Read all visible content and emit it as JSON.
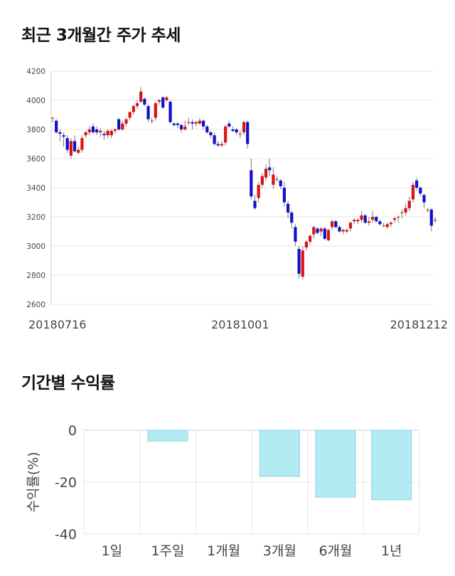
{
  "sections": {
    "price_title": "최근 3개월간 주가 추세",
    "returns_title": "기간별 수익률"
  },
  "colors": {
    "up": "#dd1111",
    "down": "#1111cc",
    "bar_fill": "#b2ebf2",
    "bar_stroke": "#8fd6e2",
    "grid": "#e6e6e6"
  },
  "chart_data": [
    {
      "type": "candlestick",
      "title": "최근 3개월간 주가 추세",
      "ylim": [
        2600,
        4200
      ],
      "yticks": [
        2600,
        2800,
        3000,
        3200,
        3400,
        3600,
        3800,
        4000,
        4200
      ],
      "xtick_labels": [
        {
          "label": "20180716",
          "index": 0
        },
        {
          "label": "20181001",
          "index": 51
        },
        {
          "label": "20181212",
          "index": 103
        }
      ],
      "grid": true,
      "candles": [
        [
          3880,
          3880,
          3850,
          3885
        ],
        [
          3860,
          3780,
          3770,
          3870
        ],
        [
          3780,
          3770,
          3720,
          3800
        ],
        [
          3760,
          3750,
          3680,
          3780
        ],
        [
          3740,
          3660,
          3640,
          3760
        ],
        [
          3620,
          3720,
          3600,
          3740
        ],
        [
          3720,
          3650,
          3640,
          3760
        ],
        [
          3640,
          3660,
          3630,
          3680
        ],
        [
          3660,
          3740,
          3640,
          3760
        ],
        [
          3760,
          3780,
          3740,
          3790
        ],
        [
          3780,
          3800,
          3760,
          3820
        ],
        [
          3820,
          3780,
          3770,
          3840
        ],
        [
          3800,
          3780,
          3760,
          3820
        ],
        [
          3780,
          3790,
          3750,
          3810
        ],
        [
          3770,
          3760,
          3730,
          3790
        ],
        [
          3760,
          3790,
          3740,
          3800
        ],
        [
          3760,
          3790,
          3740,
          3800
        ],
        [
          3790,
          3800,
          3770,
          3810
        ],
        [
          3870,
          3800,
          3790,
          3880
        ],
        [
          3800,
          3840,
          3790,
          3860
        ],
        [
          3840,
          3870,
          3820,
          3880
        ],
        [
          3880,
          3920,
          3860,
          3920
        ],
        [
          3920,
          3960,
          3900,
          3970
        ],
        [
          3960,
          3980,
          3940,
          4000
        ],
        [
          3990,
          4060,
          3980,
          4090
        ],
        [
          4010,
          3970,
          3960,
          4020
        ],
        [
          3960,
          3870,
          3850,
          3970
        ],
        [
          3860,
          3860,
          3840,
          3880
        ],
        [
          3880,
          3980,
          3860,
          3990
        ],
        [
          3990,
          4000,
          3970,
          4010
        ],
        [
          4020,
          3950,
          3940,
          4030
        ],
        [
          4000,
          4020,
          3990,
          4030
        ],
        [
          3990,
          3850,
          3840,
          4000
        ],
        [
          3840,
          3830,
          3820,
          3850
        ],
        [
          3840,
          3830,
          3810,
          3850
        ],
        [
          3830,
          3800,
          3780,
          3840
        ],
        [
          3800,
          3820,
          3790,
          3860
        ],
        [
          3850,
          3850,
          3830,
          3880
        ],
        [
          3850,
          3840,
          3800,
          3870
        ],
        [
          3840,
          3850,
          3820,
          3860
        ],
        [
          3840,
          3860,
          3830,
          3880
        ],
        [
          3860,
          3820,
          3800,
          3870
        ],
        [
          3820,
          3780,
          3770,
          3830
        ],
        [
          3780,
          3760,
          3740,
          3790
        ],
        [
          3760,
          3700,
          3690,
          3780
        ],
        [
          3700,
          3690,
          3680,
          3720
        ],
        [
          3690,
          3700,
          3680,
          3720
        ],
        [
          3710,
          3820,
          3690,
          3830
        ],
        [
          3840,
          3820,
          3810,
          3860
        ],
        [
          3800,
          3790,
          3780,
          3820
        ],
        [
          3800,
          3780,
          3760,
          3810
        ],
        [
          3770,
          3770,
          3740,
          3790
        ],
        [
          3780,
          3850,
          3760,
          3860
        ],
        [
          3850,
          3700,
          3670,
          3860
        ],
        [
          3520,
          3340,
          3320,
          3600
        ],
        [
          3310,
          3260,
          3250,
          3350
        ],
        [
          3330,
          3420,
          3300,
          3440
        ],
        [
          3420,
          3480,
          3400,
          3500
        ],
        [
          3470,
          3530,
          3450,
          3560
        ],
        [
          3540,
          3520,
          3480,
          3600
        ],
        [
          3420,
          3490,
          3390,
          3540
        ],
        [
          3460,
          3460,
          3440,
          3480
        ],
        [
          3450,
          3410,
          3390,
          3460
        ],
        [
          3400,
          3300,
          3270,
          3440
        ],
        [
          3290,
          3230,
          3190,
          3310
        ],
        [
          3230,
          3160,
          3120,
          3240
        ],
        [
          3130,
          3030,
          3000,
          3150
        ],
        [
          2980,
          2810,
          2780,
          3000
        ],
        [
          2790,
          2970,
          2770,
          3000
        ],
        [
          2990,
          3030,
          2970,
          3040
        ],
        [
          3030,
          3070,
          3010,
          3080
        ],
        [
          3080,
          3130,
          3050,
          3140
        ],
        [
          3120,
          3090,
          3080,
          3130
        ],
        [
          3100,
          3120,
          3070,
          3130
        ],
        [
          3120,
          3050,
          3040,
          3130
        ],
        [
          3040,
          3110,
          3030,
          3120
        ],
        [
          3130,
          3170,
          3110,
          3180
        ],
        [
          3170,
          3130,
          3120,
          3180
        ],
        [
          3130,
          3100,
          3090,
          3140
        ],
        [
          3100,
          3110,
          3080,
          3120
        ],
        [
          3100,
          3110,
          3090,
          3120
        ],
        [
          3120,
          3160,
          3100,
          3170
        ],
        [
          3170,
          3180,
          3150,
          3190
        ],
        [
          3170,
          3180,
          3150,
          3190
        ],
        [
          3180,
          3210,
          3160,
          3240
        ],
        [
          3210,
          3160,
          3150,
          3220
        ],
        [
          3160,
          3170,
          3140,
          3200
        ],
        [
          3180,
          3200,
          3160,
          3240
        ],
        [
          3200,
          3170,
          3160,
          3210
        ],
        [
          3170,
          3150,
          3140,
          3180
        ],
        [
          3140,
          3140,
          3130,
          3160
        ],
        [
          3130,
          3150,
          3120,
          3160
        ],
        [
          3150,
          3160,
          3130,
          3170
        ],
        [
          3180,
          3190,
          3160,
          3200
        ],
        [
          3200,
          3200,
          3160,
          3210
        ],
        [
          3230,
          3230,
          3190,
          3250
        ],
        [
          3230,
          3260,
          3210,
          3290
        ],
        [
          3260,
          3310,
          3240,
          3340
        ],
        [
          3320,
          3420,
          3300,
          3440
        ],
        [
          3450,
          3400,
          3380,
          3470
        ],
        [
          3400,
          3360,
          3340,
          3410
        ],
        [
          3350,
          3300,
          3260,
          3360
        ],
        [
          3250,
          3250,
          3230,
          3260
        ],
        [
          3250,
          3140,
          3100,
          3260
        ],
        [
          3180,
          3180,
          3160,
          3200
        ]
      ]
    },
    {
      "type": "bar",
      "title": "기간별 수익률",
      "categories": [
        "1일",
        "1주일",
        "1개월",
        "3개월",
        "6개월",
        "1년"
      ],
      "values": [
        0.0,
        -4.2,
        0.0,
        -17.8,
        -25.8,
        -26.8
      ],
      "ylabel": "수익률(%)",
      "ylim": [
        -40,
        0
      ],
      "yticks": [
        0,
        -20,
        -40
      ],
      "grid": true
    }
  ]
}
